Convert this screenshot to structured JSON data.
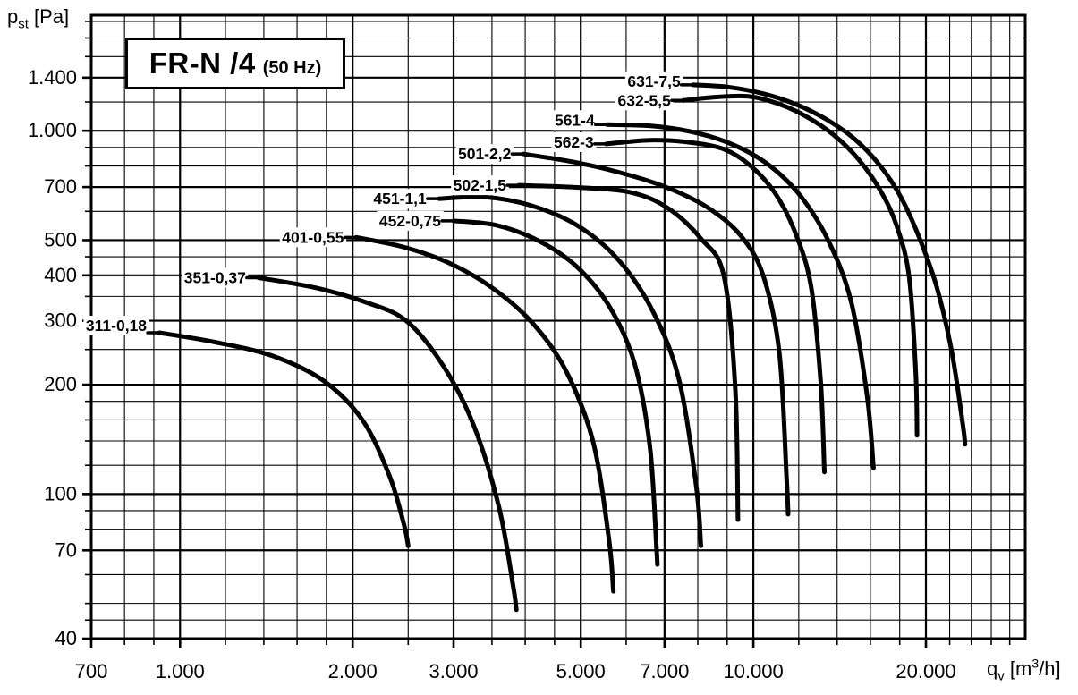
{
  "window": {
    "background": "#ffffff",
    "ink": "#000000"
  },
  "title": {
    "main": "FR-N /4",
    "suffix": "(50 Hz)"
  },
  "y_axis_title": {
    "base": "p",
    "sub": "st",
    "unit": " [Pa]"
  },
  "x_axis_title": {
    "base": "q",
    "sub": "v",
    "unit_pre": " [m",
    "sup": "3",
    "unit_post": "/h]"
  },
  "chart_data": {
    "type": "line",
    "title": "FR-N /4 (50 Hz)",
    "xlabel": "qv [m3/h]",
    "ylabel": "pst [Pa]",
    "x_scale": "log",
    "y_scale": "log",
    "xlim": [
      700,
      29800
    ],
    "ylim": [
      40,
      2080
    ],
    "grid": "on",
    "line_color": "#000000",
    "x_ticks": [
      {
        "value": 700,
        "label": "700"
      },
      {
        "value": 1000,
        "label": "1.000"
      },
      {
        "value": 2000,
        "label": "2.000"
      },
      {
        "value": 3000,
        "label": "3.000"
      },
      {
        "value": 5000,
        "label": "5.000"
      },
      {
        "value": 7000,
        "label": "7.000"
      },
      {
        "value": 10000,
        "label": "10.000"
      },
      {
        "value": 20000,
        "label": "20.000"
      }
    ],
    "x_minor": [
      800,
      900,
      1200,
      1400,
      1600,
      1800,
      2500,
      3500,
      4000,
      4500,
      6000,
      8000,
      9000,
      12000,
      14000,
      16000,
      18000,
      22000,
      24000,
      26000,
      28000
    ],
    "y_ticks": [
      {
        "value": 1400,
        "label": "1.400"
      },
      {
        "value": 1000,
        "label": "1.000"
      },
      {
        "value": 700,
        "label": "700"
      },
      {
        "value": 500,
        "label": "500"
      },
      {
        "value": 400,
        "label": "400"
      },
      {
        "value": 300,
        "label": "300"
      },
      {
        "value": 200,
        "label": "200"
      },
      {
        "value": 100,
        "label": "100"
      },
      {
        "value": 70,
        "label": "70"
      },
      {
        "value": 40,
        "label": "40"
      }
    ],
    "y_minor": [
      45,
      50,
      60,
      80,
      90,
      120,
      140,
      160,
      180,
      250,
      350,
      450,
      600,
      800,
      900,
      1200,
      1600,
      1800,
      2000
    ],
    "series": [
      {
        "name": "311-0,18",
        "label_dy": -8,
        "points": [
          [
            920,
            278
          ],
          [
            1150,
            262
          ],
          [
            1450,
            240
          ],
          [
            1780,
            205
          ],
          [
            2080,
            160
          ],
          [
            2320,
            112
          ],
          [
            2460,
            82
          ],
          [
            2500,
            72
          ]
        ]
      },
      {
        "name": "351-0,37",
        "label_dy": 0,
        "points": [
          [
            1370,
            394
          ],
          [
            1720,
            370
          ],
          [
            2100,
            338
          ],
          [
            2480,
            300
          ],
          [
            2880,
            225
          ],
          [
            3250,
            155
          ],
          [
            3600,
            92
          ],
          [
            3810,
            56
          ],
          [
            3860,
            48
          ]
        ]
      },
      {
        "name": "401-0,55",
        "label_dy": 0,
        "points": [
          [
            2030,
            509
          ],
          [
            2460,
            478
          ],
          [
            2950,
            432
          ],
          [
            3500,
            370
          ],
          [
            4100,
            298
          ],
          [
            4700,
            220
          ],
          [
            5250,
            140
          ],
          [
            5600,
            75
          ],
          [
            5700,
            54
          ]
        ]
      },
      {
        "name": "452-0,75",
        "label_dy": 0,
        "points": [
          [
            3000,
            565
          ],
          [
            3550,
            550
          ],
          [
            4200,
            500
          ],
          [
            4900,
            425
          ],
          [
            5600,
            330
          ],
          [
            6200,
            230
          ],
          [
            6600,
            135
          ],
          [
            6780,
            70
          ],
          [
            6800,
            64
          ]
        ]
      },
      {
        "name": "451-1,1",
        "label_dy": 0,
        "points": [
          [
            2830,
            650
          ],
          [
            3400,
            657
          ],
          [
            4100,
            622
          ],
          [
            4900,
            552
          ],
          [
            5750,
            450
          ],
          [
            6600,
            330
          ],
          [
            7400,
            210
          ],
          [
            7950,
            105
          ],
          [
            8100,
            72
          ]
        ]
      },
      {
        "name": "502-1,5",
        "label_dy": 0,
        "points": [
          [
            3900,
            708
          ],
          [
            4970,
            698
          ],
          [
            6130,
            676
          ],
          [
            7100,
            612
          ],
          [
            8100,
            505
          ],
          [
            8880,
            400
          ],
          [
            9300,
            195
          ],
          [
            9400,
            85
          ]
        ]
      },
      {
        "name": "501-2,2",
        "label_dy": 0,
        "points": [
          [
            3975,
            863
          ],
          [
            4970,
            815
          ],
          [
            6130,
            752
          ],
          [
            7230,
            688
          ],
          [
            8360,
            612
          ],
          [
            9500,
            515
          ],
          [
            10400,
            400
          ],
          [
            11100,
            245
          ],
          [
            11430,
            110
          ],
          [
            11500,
            88
          ]
        ]
      },
      {
        "name": "562-3",
        "label_dy": -2,
        "points": [
          [
            5540,
            920
          ],
          [
            6600,
            942
          ],
          [
            7700,
            930
          ],
          [
            8880,
            890
          ],
          [
            9900,
            800
          ],
          [
            10900,
            675
          ],
          [
            11800,
            530
          ],
          [
            12600,
            375
          ],
          [
            13100,
            205
          ],
          [
            13300,
            115
          ]
        ]
      },
      {
        "name": "561-4",
        "label_dy": -5,
        "points": [
          [
            5560,
            1040
          ],
          [
            6700,
            1030
          ],
          [
            8000,
            985
          ],
          [
            9300,
            910
          ],
          [
            10700,
            800
          ],
          [
            12100,
            660
          ],
          [
            13500,
            500
          ],
          [
            14800,
            340
          ],
          [
            15800,
            185
          ],
          [
            16200,
            118
          ]
        ]
      },
      {
        "name": "632-5,5",
        "label_dy": 0,
        "points": [
          [
            7550,
            1212
          ],
          [
            8600,
            1238
          ],
          [
            9800,
            1243
          ],
          [
            11000,
            1190
          ],
          [
            12300,
            1100
          ],
          [
            13800,
            975
          ],
          [
            15300,
            830
          ],
          [
            16700,
            680
          ],
          [
            17800,
            545
          ],
          [
            18700,
            395
          ],
          [
            19200,
            215
          ],
          [
            19300,
            145
          ]
        ]
      },
      {
        "name": "631-7,5",
        "label_dy": -4,
        "points": [
          [
            7850,
            1338
          ],
          [
            9000,
            1320
          ],
          [
            10400,
            1265
          ],
          [
            11900,
            1180
          ],
          [
            13400,
            1075
          ],
          [
            15000,
            950
          ],
          [
            16600,
            805
          ],
          [
            18100,
            655
          ],
          [
            19500,
            505
          ],
          [
            20900,
            370
          ],
          [
            22200,
            245
          ],
          [
            23200,
            155
          ],
          [
            23400,
            137
          ]
        ]
      }
    ]
  }
}
